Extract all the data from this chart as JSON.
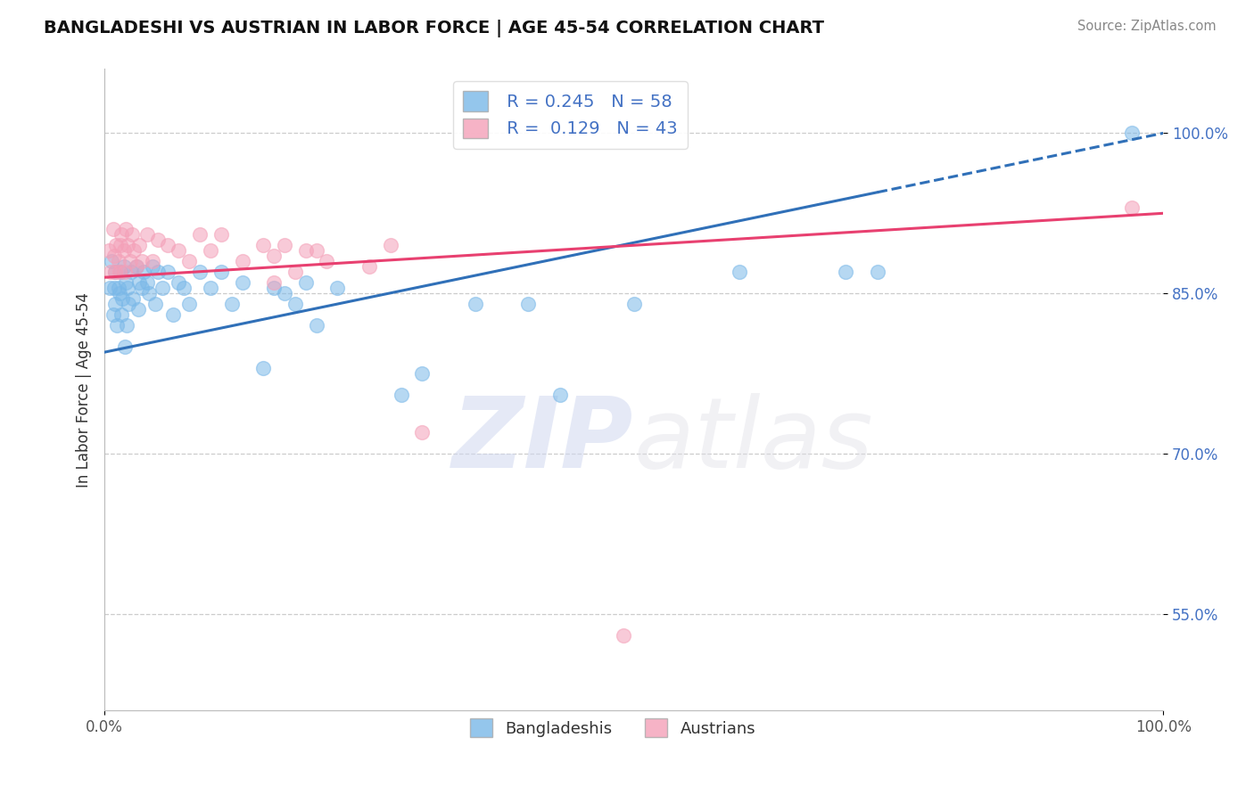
{
  "title": "BANGLADESHI VS AUSTRIAN IN LABOR FORCE | AGE 45-54 CORRELATION CHART",
  "source_text": "Source: ZipAtlas.com",
  "ylabel": "In Labor Force | Age 45-54",
  "xlim": [
    0.0,
    1.0
  ],
  "ylim": [
    0.46,
    1.06
  ],
  "blue_R": 0.245,
  "blue_N": 58,
  "pink_R": 0.129,
  "pink_N": 43,
  "blue_color": "#7ab8e8",
  "pink_color": "#f4a0b8",
  "blue_line_color": "#3070b8",
  "pink_line_color": "#e84070",
  "ytick_vals": [
    0.55,
    0.7,
    0.85,
    1.0
  ],
  "ytick_labels": [
    "55.0%",
    "70.0%",
    "85.0%",
    "100.0%"
  ],
  "blue_line_x0": 0.0,
  "blue_line_y0": 0.795,
  "blue_line_x1": 1.0,
  "blue_line_y1": 1.0,
  "blue_line_solid_end": 0.73,
  "pink_line_x0": 0.0,
  "pink_line_y0": 0.865,
  "pink_line_x1": 1.0,
  "pink_line_y1": 0.925,
  "blue_pts_x": [
    0.005,
    0.007,
    0.008,
    0.009,
    0.01,
    0.01,
    0.012,
    0.013,
    0.014,
    0.015,
    0.016,
    0.017,
    0.018,
    0.019,
    0.02,
    0.021,
    0.022,
    0.023,
    0.025,
    0.027,
    0.03,
    0.032,
    0.033,
    0.035,
    0.037,
    0.04,
    0.042,
    0.045,
    0.048,
    0.05,
    0.055,
    0.06,
    0.065,
    0.07,
    0.075,
    0.08,
    0.09,
    0.1,
    0.11,
    0.12,
    0.13,
    0.15,
    0.16,
    0.17,
    0.18,
    0.19,
    0.2,
    0.22,
    0.28,
    0.3,
    0.35,
    0.4,
    0.43,
    0.5,
    0.6,
    0.7,
    0.73,
    0.97
  ],
  "blue_pts_y": [
    0.855,
    0.88,
    0.83,
    0.855,
    0.87,
    0.84,
    0.82,
    0.855,
    0.85,
    0.87,
    0.83,
    0.845,
    0.875,
    0.8,
    0.86,
    0.82,
    0.855,
    0.84,
    0.87,
    0.845,
    0.875,
    0.835,
    0.86,
    0.855,
    0.87,
    0.86,
    0.85,
    0.875,
    0.84,
    0.87,
    0.855,
    0.87,
    0.83,
    0.86,
    0.855,
    0.84,
    0.87,
    0.855,
    0.87,
    0.84,
    0.86,
    0.78,
    0.855,
    0.85,
    0.84,
    0.86,
    0.82,
    0.855,
    0.755,
    0.775,
    0.84,
    0.84,
    0.755,
    0.84,
    0.87,
    0.87,
    0.87,
    1.0
  ],
  "pink_pts_x": [
    0.004,
    0.006,
    0.008,
    0.009,
    0.01,
    0.011,
    0.013,
    0.014,
    0.015,
    0.016,
    0.018,
    0.019,
    0.02,
    0.022,
    0.024,
    0.026,
    0.028,
    0.03,
    0.033,
    0.035,
    0.04,
    0.045,
    0.05,
    0.06,
    0.07,
    0.08,
    0.09,
    0.1,
    0.11,
    0.13,
    0.15,
    0.17,
    0.19,
    0.21,
    0.25,
    0.27,
    0.16,
    0.18,
    0.2,
    0.3,
    0.16,
    0.49,
    0.97
  ],
  "pink_pts_y": [
    0.89,
    0.87,
    0.91,
    0.885,
    0.87,
    0.895,
    0.88,
    0.87,
    0.895,
    0.905,
    0.89,
    0.87,
    0.91,
    0.895,
    0.88,
    0.905,
    0.89,
    0.875,
    0.895,
    0.88,
    0.905,
    0.88,
    0.9,
    0.895,
    0.89,
    0.88,
    0.905,
    0.89,
    0.905,
    0.88,
    0.895,
    0.895,
    0.89,
    0.88,
    0.875,
    0.895,
    0.86,
    0.87,
    0.89,
    0.72,
    0.885,
    0.53,
    0.93
  ]
}
